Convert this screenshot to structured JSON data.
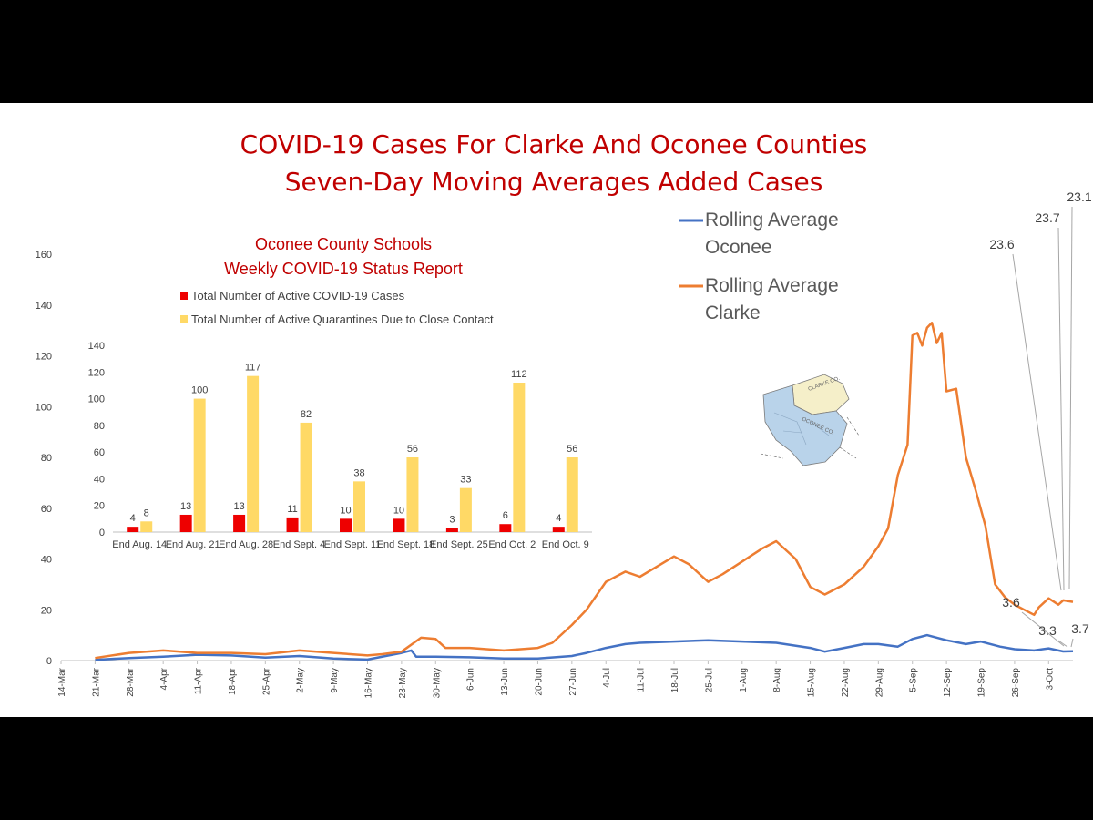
{
  "title_lines": [
    "COVID-19 Cases For Clarke And Oconee Counties",
    "Seven-Day Moving Averages Added Cases"
  ],
  "colors": {
    "title": "#c00000",
    "oconee": "#4472c4",
    "clarke": "#ed7d31",
    "cases": "#ee0000",
    "quarantines": "#ffd966"
  },
  "chart_data": [
    {
      "type": "line",
      "ylim": [
        0,
        160
      ],
      "yticks": [
        0,
        20,
        40,
        60,
        80,
        100,
        120,
        140,
        160
      ],
      "x_start": "14-Mar",
      "x_end_day": 208,
      "xtick_labels": [
        "14-Mar",
        "21-Mar",
        "28-Mar",
        "4-Apr",
        "11-Apr",
        "18-Apr",
        "25-Apr",
        "2-May",
        "9-May",
        "16-May",
        "23-May",
        "30-May",
        "6-Jun",
        "13-Jun",
        "20-Jun",
        "27-Jun",
        "4-Jul",
        "11-Jul",
        "18-Jul",
        "25-Jul",
        "1-Aug",
        "8-Aug",
        "15-Aug",
        "22-Aug",
        "29-Aug",
        "5-Sep",
        "12-Sep",
        "19-Sep",
        "26-Sep",
        "3-Oct"
      ],
      "xtick_days": [
        0,
        7,
        14,
        21,
        28,
        35,
        42,
        49,
        56,
        63,
        70,
        77,
        84,
        91,
        98,
        105,
        112,
        119,
        126,
        133,
        140,
        147,
        154,
        161,
        168,
        175,
        182,
        189,
        196,
        203
      ],
      "legend": [
        {
          "lines": [
            "Rolling Average",
            "Oconee"
          ],
          "series": "Rolling Average Oconee"
        },
        {
          "lines": [
            "Rolling Average",
            "Clarke"
          ],
          "series": "Rolling Average Clarke"
        }
      ],
      "series": [
        {
          "name": "Rolling Average Oconee",
          "color": "#4472c4",
          "points": [
            [
              7,
              0.3
            ],
            [
              14,
              1
            ],
            [
              21,
              1.5
            ],
            [
              28,
              2.3
            ],
            [
              35,
              2
            ],
            [
              42,
              1.2
            ],
            [
              49,
              1.8
            ],
            [
              56,
              0.8
            ],
            [
              63,
              0.4
            ],
            [
              70,
              3
            ],
            [
              72,
              4
            ],
            [
              73,
              1.5
            ],
            [
              77,
              1.5
            ],
            [
              84,
              1.3
            ],
            [
              91,
              0.8
            ],
            [
              98,
              0.8
            ],
            [
              105,
              1.8
            ],
            [
              108,
              3
            ],
            [
              112,
              5
            ],
            [
              116,
              6.5
            ],
            [
              119,
              7
            ],
            [
              126,
              7.5
            ],
            [
              133,
              8
            ],
            [
              140,
              7.5
            ],
            [
              147,
              7
            ],
            [
              154,
              5
            ],
            [
              157,
              3.5
            ],
            [
              161,
              5
            ],
            [
              165,
              6.5
            ],
            [
              168,
              6.5
            ],
            [
              172,
              5.5
            ],
            [
              175,
              8.5
            ],
            [
              178,
              10
            ],
            [
              182,
              8
            ],
            [
              186,
              6.5
            ],
            [
              189,
              7.5
            ],
            [
              193,
              5.5
            ],
            [
              196,
              4.5
            ],
            [
              200,
              4
            ],
            [
              203,
              4.8
            ],
            [
              206,
              3.6
            ],
            [
              208,
              3.7
            ]
          ]
        },
        {
          "name": "Rolling Average Clarke",
          "color": "#ed7d31",
          "points": [
            [
              7,
              1
            ],
            [
              14,
              3
            ],
            [
              21,
              4
            ],
            [
              28,
              3
            ],
            [
              35,
              3
            ],
            [
              42,
              2.5
            ],
            [
              49,
              4
            ],
            [
              56,
              3
            ],
            [
              63,
              2
            ],
            [
              66,
              2.5
            ],
            [
              70,
              3.5
            ],
            [
              74,
              9
            ],
            [
              77,
              8.5
            ],
            [
              79,
              5
            ],
            [
              84,
              5
            ],
            [
              91,
              4
            ],
            [
              98,
              5
            ],
            [
              101,
              7
            ],
            [
              105,
              14
            ],
            [
              108,
              20
            ],
            [
              112,
              31
            ],
            [
              116,
              35
            ],
            [
              119,
              33
            ],
            [
              126,
              41
            ],
            [
              129,
              38
            ],
            [
              133,
              31
            ],
            [
              136,
              34
            ],
            [
              140,
              39
            ],
            [
              144,
              44
            ],
            [
              147,
              47
            ],
            [
              151,
              40
            ],
            [
              154,
              29
            ],
            [
              157,
              26
            ],
            [
              161,
              30
            ],
            [
              165,
              37
            ],
            [
              168,
              45
            ],
            [
              170,
              52
            ],
            [
              172,
              73
            ],
            [
              174,
              85
            ],
            [
              175,
              128
            ],
            [
              176,
              129
            ],
            [
              177,
              124
            ],
            [
              178,
              131
            ],
            [
              179,
              133
            ],
            [
              180,
              125
            ],
            [
              181,
              129
            ],
            [
              182,
              106
            ],
            [
              184,
              107
            ],
            [
              186,
              80
            ],
            [
              188,
              67
            ],
            [
              190,
              53
            ],
            [
              192,
              30
            ],
            [
              194,
              25
            ],
            [
              196,
              22
            ],
            [
              198,
              20
            ],
            [
              200,
              18
            ],
            [
              201,
              21
            ],
            [
              203,
              24.5
            ],
            [
              205,
              22
            ],
            [
              206,
              23.7
            ],
            [
              208,
              23.1
            ]
          ]
        }
      ],
      "annotations": [
        "23.1",
        "23.7",
        "23.6",
        "3.6",
        "3.3",
        "3.7"
      ]
    },
    {
      "type": "bar",
      "title": [
        "Oconee County Schools",
        "Weekly COVID-19 Status Report"
      ],
      "ylim": [
        0,
        140
      ],
      "yticks": [
        0,
        20,
        40,
        60,
        80,
        100,
        120,
        140
      ],
      "categories": [
        "End Aug. 14",
        "End Aug. 21",
        "End Aug. 28",
        "End Sept. 4",
        "End Sept. 11",
        "End Sept. 18",
        "End Sept. 25",
        "End Oct. 2",
        "End Oct. 9"
      ],
      "series": [
        {
          "name": "Total Number of Active COVID-19 Cases",
          "color": "#ee0000",
          "values": [
            4,
            13,
            13,
            11,
            10,
            10,
            3,
            6,
            4
          ]
        },
        {
          "name": "Total Number of Active Quarantines Due to Close Contact",
          "color": "#ffd966",
          "values": [
            8,
            100,
            117,
            82,
            38,
            56,
            33,
            112,
            56
          ]
        }
      ]
    }
  ],
  "map_labels": [
    "CLARKE CO.",
    "OCONEE CO."
  ]
}
